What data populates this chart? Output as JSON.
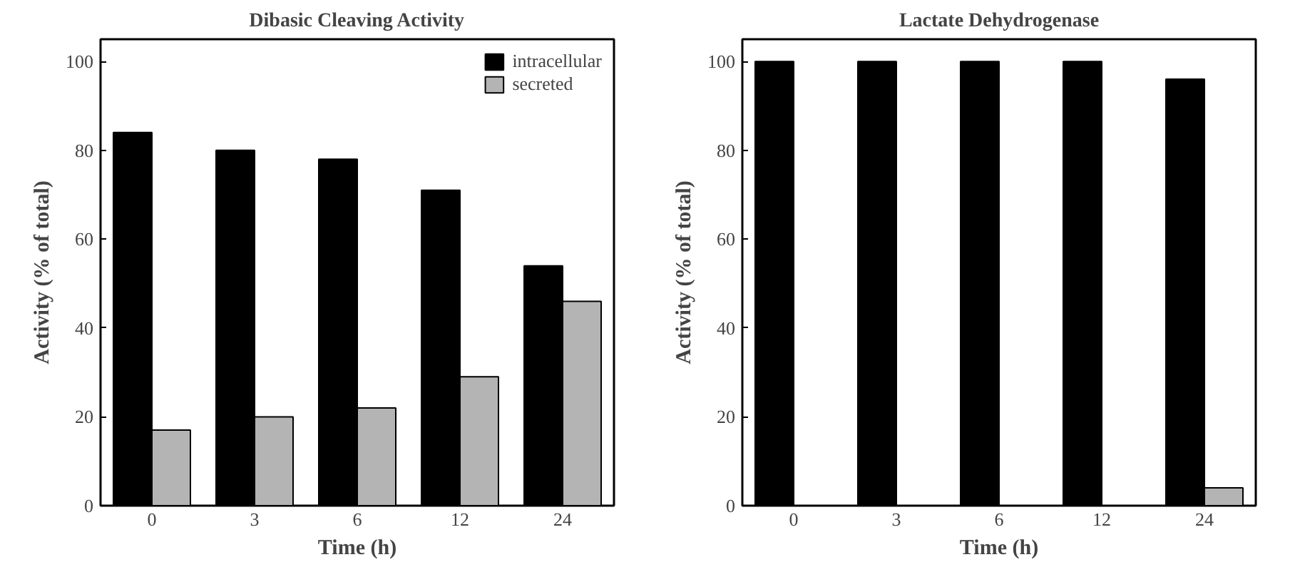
{
  "chart_data": [
    {
      "type": "bar",
      "title": "Dibasic Cleaving Activity",
      "xlabel": "Time (h)",
      "ylabel": "Activity (% of total)",
      "categories": [
        "0",
        "3",
        "6",
        "12",
        "24"
      ],
      "ylim": [
        0,
        105
      ],
      "yticks": [
        0,
        20,
        40,
        60,
        80,
        100
      ],
      "legend": "top right",
      "series": [
        {
          "name": "intracellular",
          "color": "#000000",
          "values": [
            84,
            80,
            78,
            71,
            54
          ]
        },
        {
          "name": "secreted",
          "color": "#b4b4b4",
          "values": [
            17,
            20,
            22,
            29,
            46
          ]
        }
      ]
    },
    {
      "type": "bar",
      "title": "Lactate Dehydrogenase",
      "xlabel": "Time (h)",
      "ylabel": "Activity (% of total)",
      "categories": [
        "0",
        "3",
        "6",
        "12",
        "24"
      ],
      "ylim": [
        0,
        105
      ],
      "yticks": [
        0,
        20,
        40,
        60,
        80,
        100
      ],
      "series": [
        {
          "color": "#000000",
          "values": [
            100,
            100,
            100,
            100,
            96
          ]
        },
        {
          "color": "#b4b4b4",
          "values": [
            null,
            null,
            null,
            null,
            4
          ]
        }
      ]
    }
  ]
}
